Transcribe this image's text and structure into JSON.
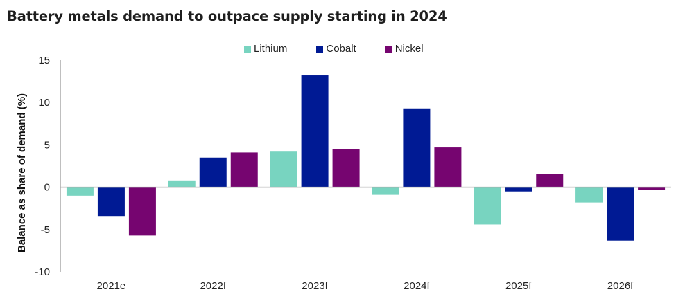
{
  "chart_data": {
    "type": "bar",
    "title": "Battery metals demand to outpace supply starting in 2024",
    "xlabel": "",
    "ylabel": "Balance as share of demand (%)",
    "ylim": [
      -10,
      15
    ],
    "yticks": [
      -10,
      -5,
      0,
      5,
      10,
      15
    ],
    "ytick_labels": [
      "-10",
      "-5",
      "0",
      "5",
      "10",
      "15"
    ],
    "grid": false,
    "legend_position": "top-center",
    "categories": [
      "2021e",
      "2022f",
      "2023f",
      "2024f",
      "2025f",
      "2026f"
    ],
    "series": [
      {
        "name": "Lithium",
        "color": "#78d4c0",
        "values": [
          -1.0,
          0.8,
          4.2,
          -0.9,
          -4.4,
          -1.8
        ]
      },
      {
        "name": "Cobalt",
        "color": "#001a94",
        "values": [
          -3.4,
          3.5,
          13.2,
          9.3,
          -0.5,
          -6.3
        ]
      },
      {
        "name": "Nickel",
        "color": "#760570",
        "values": [
          -5.7,
          4.1,
          4.5,
          4.7,
          1.6,
          -0.3
        ]
      }
    ]
  }
}
